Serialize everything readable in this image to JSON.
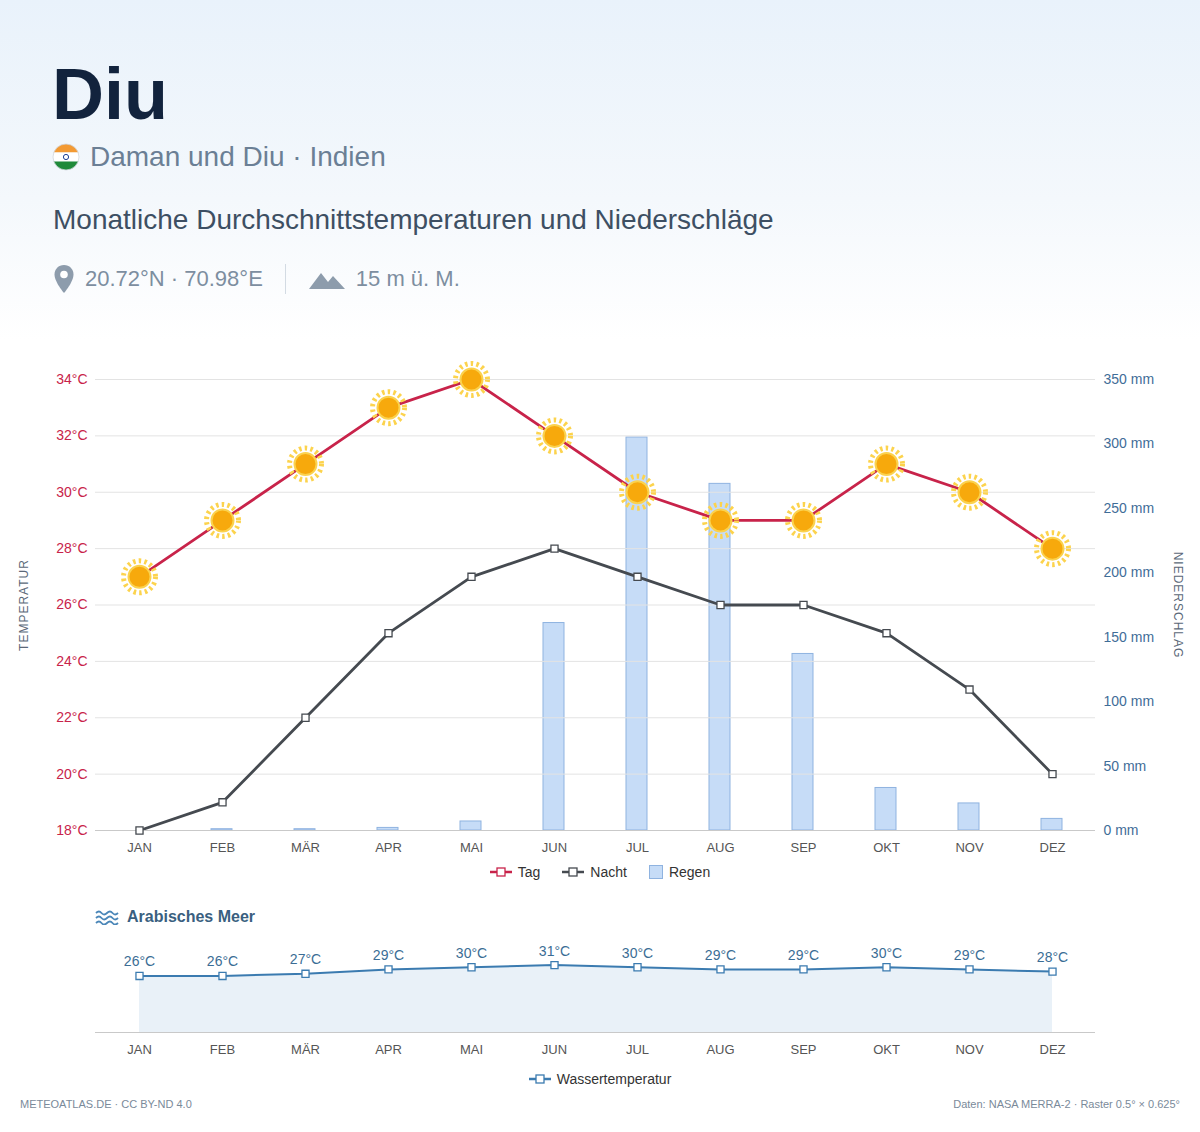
{
  "chart_data": [
    {
      "type": "line",
      "title": "Diu",
      "subtitle": "Daman und Diu · Indien",
      "annotations": {
        "heading": "Monatliche Durchschnittstemperaturen und Niederschläge",
        "coordinates": "20.72°N · 70.98°E",
        "elevation": "15 m ü. M."
      },
      "ylabel": "TEMPERATUR",
      "y2label": "NIEDERSCHLAG",
      "categories": [
        "JAN",
        "FEB",
        "MÄR",
        "APR",
        "MAI",
        "JUN",
        "JUL",
        "AUG",
        "SEP",
        "OKT",
        "NOV",
        "DEZ"
      ],
      "series": [
        {
          "name": "Tag",
          "color": "#c8234a",
          "marker": "sun",
          "values": [
            27,
            29,
            31,
            33,
            34,
            32,
            30,
            29,
            29,
            31,
            30,
            28
          ]
        },
        {
          "name": "Nacht",
          "color": "#454a50",
          "marker": "square",
          "values": [
            18,
            19,
            22,
            25,
            27,
            28,
            27,
            26,
            26,
            25,
            23,
            20
          ]
        },
        {
          "name": "Regen",
          "type": "bar",
          "axis": "y2",
          "color": "#c6dcf7",
          "values": [
            0,
            1,
            1,
            2,
            7,
            161,
            305,
            269,
            137,
            33,
            21,
            9
          ]
        }
      ],
      "ylim": [
        18,
        34
      ],
      "yticks": [
        {
          "value": 18,
          "label": "18°C"
        },
        {
          "value": 20,
          "label": "20°C"
        },
        {
          "value": 22,
          "label": "22°C"
        },
        {
          "value": 24,
          "label": "24°C"
        },
        {
          "value": 26,
          "label": "26°C"
        },
        {
          "value": 28,
          "label": "28°C"
        },
        {
          "value": 30,
          "label": "30°C"
        },
        {
          "value": 32,
          "label": "32°C"
        },
        {
          "value": 34,
          "label": "34°C"
        }
      ],
      "y2lim": [
        0,
        350
      ],
      "y2ticks": [
        {
          "value": 0,
          "label": "0 mm"
        },
        {
          "value": 50,
          "label": "50 mm"
        },
        {
          "value": 100,
          "label": "100 mm"
        },
        {
          "value": 150,
          "label": "150 mm"
        },
        {
          "value": 200,
          "label": "200 mm"
        },
        {
          "value": 250,
          "label": "250 mm"
        },
        {
          "value": 300,
          "label": "300 mm"
        },
        {
          "value": 350,
          "label": "350 mm"
        }
      ],
      "grid": true,
      "legend": "bottom"
    },
    {
      "type": "line",
      "title": "Arabisches Meer",
      "categories": [
        "JAN",
        "FEB",
        "MÄR",
        "APR",
        "MAI",
        "JUN",
        "JUL",
        "AUG",
        "SEP",
        "OKT",
        "NOV",
        "DEZ"
      ],
      "series": [
        {
          "name": "Wassertemperatur",
          "color": "#3b7bb0",
          "marker": "square",
          "values": [
            26,
            26,
            27,
            29,
            30,
            31,
            30,
            29,
            29,
            30,
            29,
            28
          ],
          "value_labels": [
            "26°C",
            "26°C",
            "27°C",
            "29°C",
            "30°C",
            "31°C",
            "30°C",
            "29°C",
            "29°C",
            "30°C",
            "29°C",
            "28°C"
          ]
        }
      ],
      "ylim": [
        0,
        40
      ],
      "data_labels": true,
      "tick_labels": "x",
      "legend": "bottom",
      "annotations": {
        "credit": "METEOATLAS.DE · CC BY-ND 4.0",
        "source": "Daten: NASA MERRA-2 · Raster 0.5° × 0.625°"
      }
    }
  ]
}
